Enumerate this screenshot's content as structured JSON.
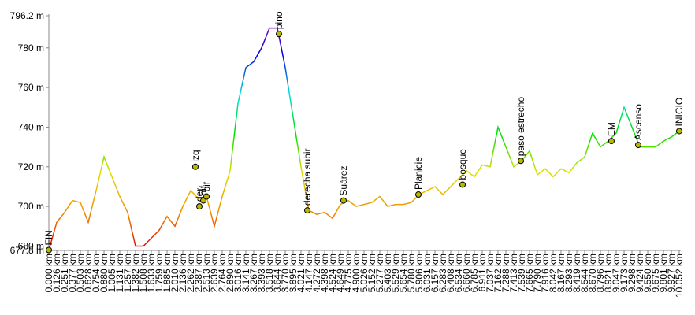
{
  "chart_data": {
    "type": "line",
    "colorscale": [
      "#e00000",
      "#f09000",
      "#e0e000",
      "#00e000",
      "#00e0e0",
      "#0000e0",
      "#a000c0"
    ],
    "marker_color": "#b8b800",
    "ylim": [
      677.8,
      796.2
    ],
    "yticks": [
      {
        "value": 677.8,
        "label": "677.8 m"
      },
      {
        "value": 680,
        "label": "680 m"
      },
      {
        "value": 700,
        "label": "700 m"
      },
      {
        "value": 720,
        "label": "720 m"
      },
      {
        "value": 740,
        "label": "740 m"
      },
      {
        "value": 760,
        "label": "760 m"
      },
      {
        "value": 780,
        "label": "780 m"
      },
      {
        "value": 796.2,
        "label": "796.2 m"
      }
    ],
    "xlim": [
      0,
      10.052
    ],
    "xticks": [
      {
        "value": 0.0,
        "label": "0.000 km"
      },
      {
        "value": 0.126,
        "label": "0.126 km"
      },
      {
        "value": 0.251,
        "label": "0.251 km"
      },
      {
        "value": 0.377,
        "label": "0.377 km"
      },
      {
        "value": 0.503,
        "label": "0.503 km"
      },
      {
        "value": 0.628,
        "label": "0.628 km"
      },
      {
        "value": 0.754,
        "label": "0.754 km"
      },
      {
        "value": 0.88,
        "label": "0.880 km"
      },
      {
        "value": 1.005,
        "label": "1.005 km"
      },
      {
        "value": 1.131,
        "label": "1.131 km"
      },
      {
        "value": 1.257,
        "label": "1.257 km"
      },
      {
        "value": 1.382,
        "label": "1.382 km"
      },
      {
        "value": 1.508,
        "label": "1.508 km"
      },
      {
        "value": 1.633,
        "label": "1.633 km"
      },
      {
        "value": 1.759,
        "label": "1.759 km"
      },
      {
        "value": 1.885,
        "label": "1.885 km"
      },
      {
        "value": 2.01,
        "label": "2.010 km"
      },
      {
        "value": 2.136,
        "label": "2.136 km"
      },
      {
        "value": 2.262,
        "label": "2.262 km"
      },
      {
        "value": 2.387,
        "label": "2.387 km"
      },
      {
        "value": 2.513,
        "label": "2.513 km"
      },
      {
        "value": 2.639,
        "label": "2.639 km"
      },
      {
        "value": 2.764,
        "label": "2.764 km"
      },
      {
        "value": 2.89,
        "label": "2.890 km"
      },
      {
        "value": 3.016,
        "label": "3.016 km"
      },
      {
        "value": 3.141,
        "label": "3.141 km"
      },
      {
        "value": 3.267,
        "label": "3.267 km"
      },
      {
        "value": 3.393,
        "label": "3.393 km"
      },
      {
        "value": 3.518,
        "label": "3.518 km"
      },
      {
        "value": 3.644,
        "label": "3.644 km"
      },
      {
        "value": 3.77,
        "label": "3.770 km"
      },
      {
        "value": 3.895,
        "label": "3.895 km"
      },
      {
        "value": 4.021,
        "label": "4.021 km"
      },
      {
        "value": 4.147,
        "label": "4.147 km"
      },
      {
        "value": 4.272,
        "label": "4.272 km"
      },
      {
        "value": 4.398,
        "label": "4.398 km"
      },
      {
        "value": 4.524,
        "label": "4.524 km"
      },
      {
        "value": 4.649,
        "label": "4.649 km"
      },
      {
        "value": 4.775,
        "label": "4.775 km"
      },
      {
        "value": 4.9,
        "label": "4.900 km"
      },
      {
        "value": 5.026,
        "label": "5.026 km"
      },
      {
        "value": 5.152,
        "label": "5.152 km"
      },
      {
        "value": 5.277,
        "label": "5.277 km"
      },
      {
        "value": 5.403,
        "label": "5.403 km"
      },
      {
        "value": 5.529,
        "label": "5.529 km"
      },
      {
        "value": 5.654,
        "label": "5.654 km"
      },
      {
        "value": 5.78,
        "label": "5.780 km"
      },
      {
        "value": 5.906,
        "label": "5.906 km"
      },
      {
        "value": 6.031,
        "label": "6.031 km"
      },
      {
        "value": 6.157,
        "label": "6.157 km"
      },
      {
        "value": 6.283,
        "label": "6.283 km"
      },
      {
        "value": 6.408,
        "label": "6.408 km"
      },
      {
        "value": 6.534,
        "label": "6.534 km"
      },
      {
        "value": 6.66,
        "label": "6.660 km"
      },
      {
        "value": 6.785,
        "label": "6.785 km"
      },
      {
        "value": 6.911,
        "label": "6.911 km"
      },
      {
        "value": 7.037,
        "label": "7.037 km"
      },
      {
        "value": 7.162,
        "label": "7.162 km"
      },
      {
        "value": 7.288,
        "label": "7.288 km"
      },
      {
        "value": 7.413,
        "label": "7.413 km"
      },
      {
        "value": 7.539,
        "label": "7.539 km"
      },
      {
        "value": 7.665,
        "label": "7.665 km"
      },
      {
        "value": 7.79,
        "label": "7.790 km"
      },
      {
        "value": 7.916,
        "label": "7.916 km"
      },
      {
        "value": 8.042,
        "label": "8.042 km"
      },
      {
        "value": 8.167,
        "label": "8.167 km"
      },
      {
        "value": 8.293,
        "label": "8.293 km"
      },
      {
        "value": 8.419,
        "label": "8.419 km"
      },
      {
        "value": 8.544,
        "label": "8.544 km"
      },
      {
        "value": 8.67,
        "label": "8.670 km"
      },
      {
        "value": 8.796,
        "label": "8.796 km"
      },
      {
        "value": 8.921,
        "label": "8.921 km"
      },
      {
        "value": 9.047,
        "label": "9.047 km"
      },
      {
        "value": 9.173,
        "label": "9.173 km"
      },
      {
        "value": 9.298,
        "label": "9.298 km"
      },
      {
        "value": 9.424,
        "label": "9.424 km"
      },
      {
        "value": 9.55,
        "label": "9.550 km"
      },
      {
        "value": 9.675,
        "label": "9.675 km"
      },
      {
        "value": 9.801,
        "label": "9.801 km"
      },
      {
        "value": 9.927,
        "label": "9.927 km"
      },
      {
        "value": 10.052,
        "label": "10.052 km"
      }
    ],
    "x": [
      0.0,
      0.126,
      0.251,
      0.377,
      0.503,
      0.628,
      0.754,
      0.88,
      1.005,
      1.131,
      1.257,
      1.382,
      1.508,
      1.633,
      1.759,
      1.885,
      2.01,
      2.136,
      2.262,
      2.387,
      2.513,
      2.639,
      2.764,
      2.89,
      3.016,
      3.141,
      3.267,
      3.393,
      3.518,
      3.644,
      3.77,
      3.895,
      4.021,
      4.147,
      4.272,
      4.398,
      4.524,
      4.649,
      4.775,
      4.9,
      5.026,
      5.152,
      5.277,
      5.403,
      5.529,
      5.654,
      5.78,
      5.906,
      6.031,
      6.157,
      6.283,
      6.408,
      6.534,
      6.66,
      6.785,
      6.911,
      7.037,
      7.162,
      7.288,
      7.413,
      7.539,
      7.665,
      7.79,
      7.916,
      8.042,
      8.167,
      8.293,
      8.419,
      8.544,
      8.67,
      8.796,
      8.921,
      9.047,
      9.173,
      9.298,
      9.424,
      9.55,
      9.675,
      9.801,
      9.927,
      10.052
    ],
    "values": [
      678,
      692,
      697,
      703,
      702,
      692,
      708,
      725,
      715,
      705,
      697,
      680,
      680,
      684,
      688,
      695,
      690,
      700,
      708,
      704,
      705,
      690,
      705,
      718,
      752,
      770,
      773,
      780,
      790,
      790,
      770,
      745,
      720,
      698,
      696,
      697,
      694,
      701,
      703,
      700,
      701,
      702,
      705,
      700,
      701,
      701,
      702,
      706,
      708,
      710,
      706,
      710,
      714,
      718,
      715,
      721,
      720,
      740,
      730,
      720,
      723,
      728,
      716,
      719,
      715,
      719,
      717,
      722,
      725,
      737,
      730,
      733,
      737,
      750,
      740,
      730,
      730,
      730,
      733,
      735,
      738
    ],
    "waypoints": {
      "names": [
        "FIN",
        "izq",
        "der",
        "bif",
        "bif",
        "pino",
        "derecha subir",
        "Suárez",
        "Planicie",
        "bosque",
        "paso estrecho",
        "EM",
        "Ascenso",
        "INICIO"
      ],
      "x": [
        0.0,
        2.337,
        2.4,
        2.463,
        2.513,
        3.669,
        4.121,
        4.699,
        5.893,
        6.597,
        7.527,
        8.971,
        9.398,
        10.052
      ],
      "values": [
        678,
        720,
        700,
        703,
        705,
        787,
        698,
        703,
        706,
        711,
        723,
        733,
        731,
        738
      ]
    }
  }
}
